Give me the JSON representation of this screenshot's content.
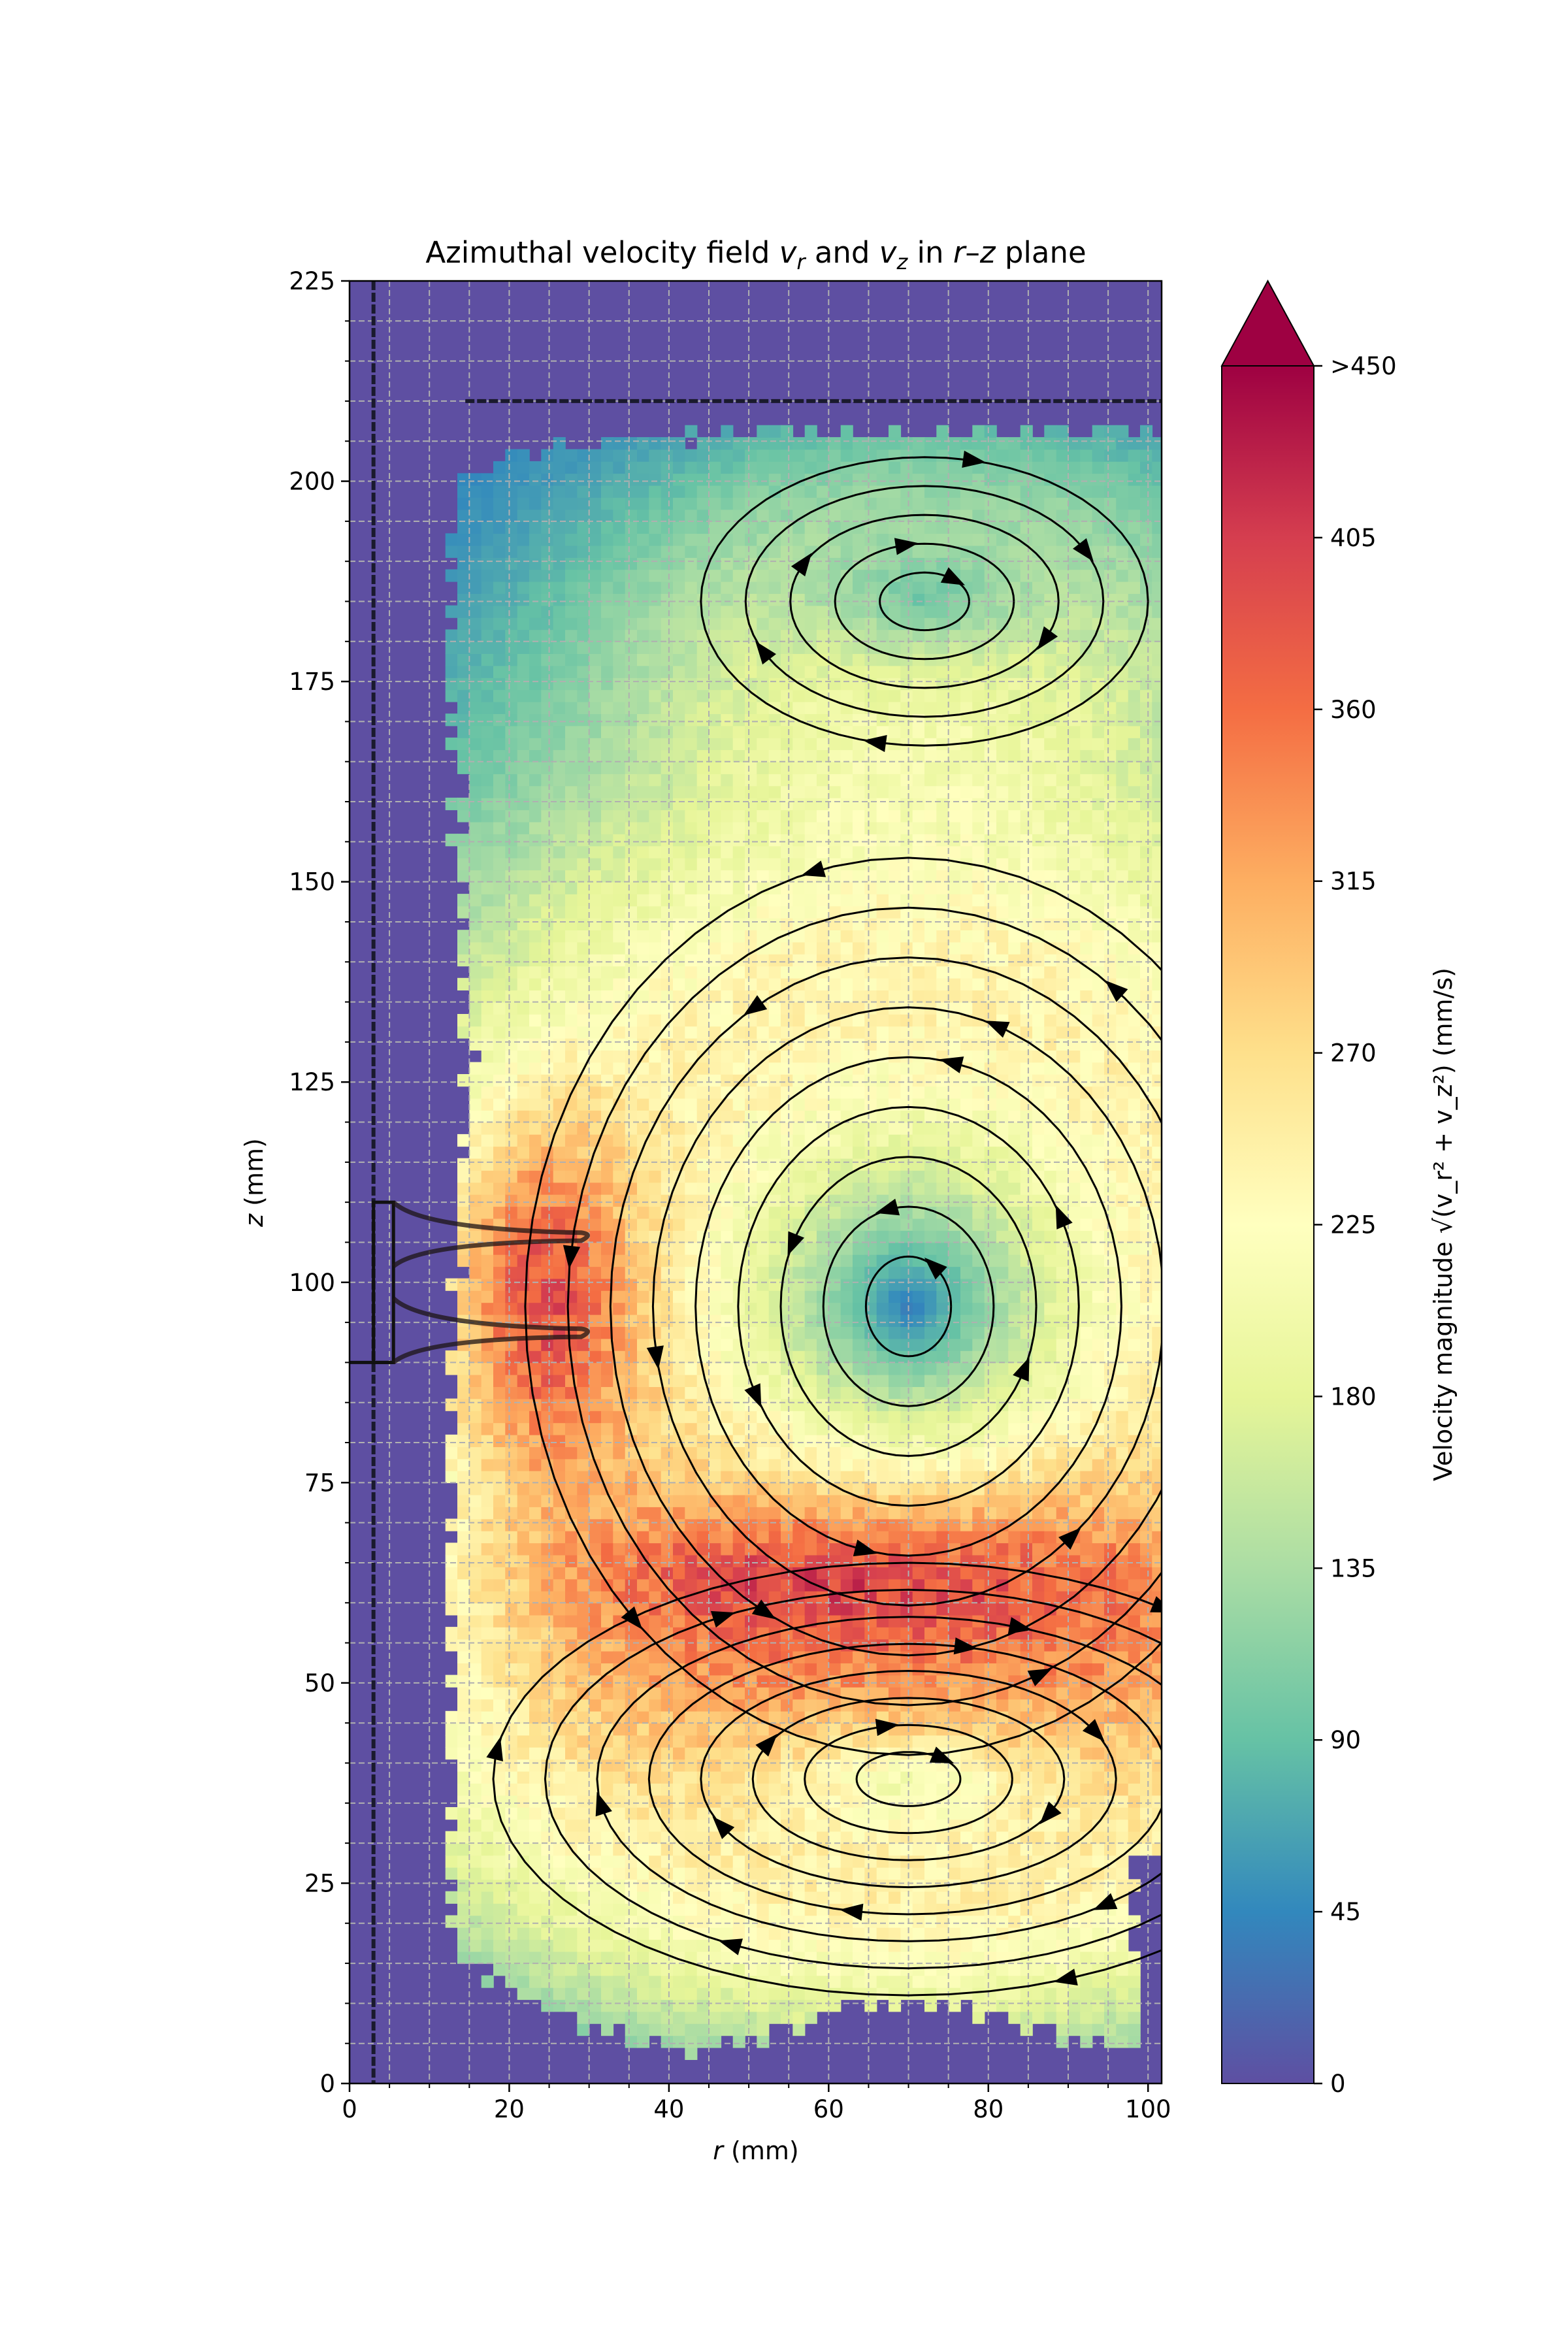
{
  "chart_data": {
    "type": "heatmap",
    "title_parts": [
      "Azimuthal velocity field ",
      "v",
      "r",
      " and ",
      "v",
      "z",
      " in ",
      "r",
      "–",
      "z",
      " plane"
    ],
    "xlabel_var": "r",
    "xlabel_unit": " (mm)",
    "ylabel_var": "z",
    "ylabel_unit": " (mm)",
    "xlim": [
      0,
      101.7
    ],
    "ylim": [
      0,
      225
    ],
    "xticks": [
      0,
      20,
      40,
      60,
      80,
      100
    ],
    "yticks": [
      0,
      25,
      50,
      75,
      100,
      125,
      150,
      175,
      200,
      225
    ],
    "grid": true,
    "grid_step_mm": 5,
    "colormap": [
      "#5e4fa2",
      "#3288bd",
      "#66c2a5",
      "#abdda4",
      "#e6f598",
      "#ffffbf",
      "#fee08b",
      "#fdae61",
      "#f46d43",
      "#d53e4f",
      "#9e0142"
    ],
    "colorbar": {
      "label": "Velocity magnitude ",
      "formula": "√(v_r² + v_z²)",
      "unit": " (mm/s)",
      "range": [
        0,
        450
      ],
      "ticks": [
        "0",
        "45",
        "90",
        "135",
        "180",
        "225",
        "270",
        "315",
        "360",
        "405"
      ],
      "extend_label": ">450",
      "extend_color": "#9e0142"
    },
    "vortices": [
      {
        "name": "central",
        "center": [
          70,
          97
        ],
        "extent_r": 48,
        "extent_z": 56,
        "direction": "counterclockwise",
        "peak_speed": 210
      },
      {
        "name": "bottom",
        "center": [
          70,
          38
        ],
        "extent_r": 52,
        "extent_z": 27,
        "direction": "clockwise",
        "peak_speed": 110
      },
      {
        "name": "top",
        "center": [
          72,
          185
        ],
        "extent_r": 28,
        "extent_z": 18,
        "direction": "clockwise",
        "peak_speed": 60
      }
    ],
    "jet": {
      "center": [
        24,
        98
      ],
      "peak_speed": 350
    },
    "geometry": {
      "shaft_r": 3,
      "lid_z": 210,
      "lid_r_start": 14.5,
      "impeller_r": [
        3,
        5.5
      ],
      "impeller_z": [
        90,
        110
      ],
      "blade_z": [
        106,
        94
      ],
      "blade_tip_r": 29
    }
  }
}
